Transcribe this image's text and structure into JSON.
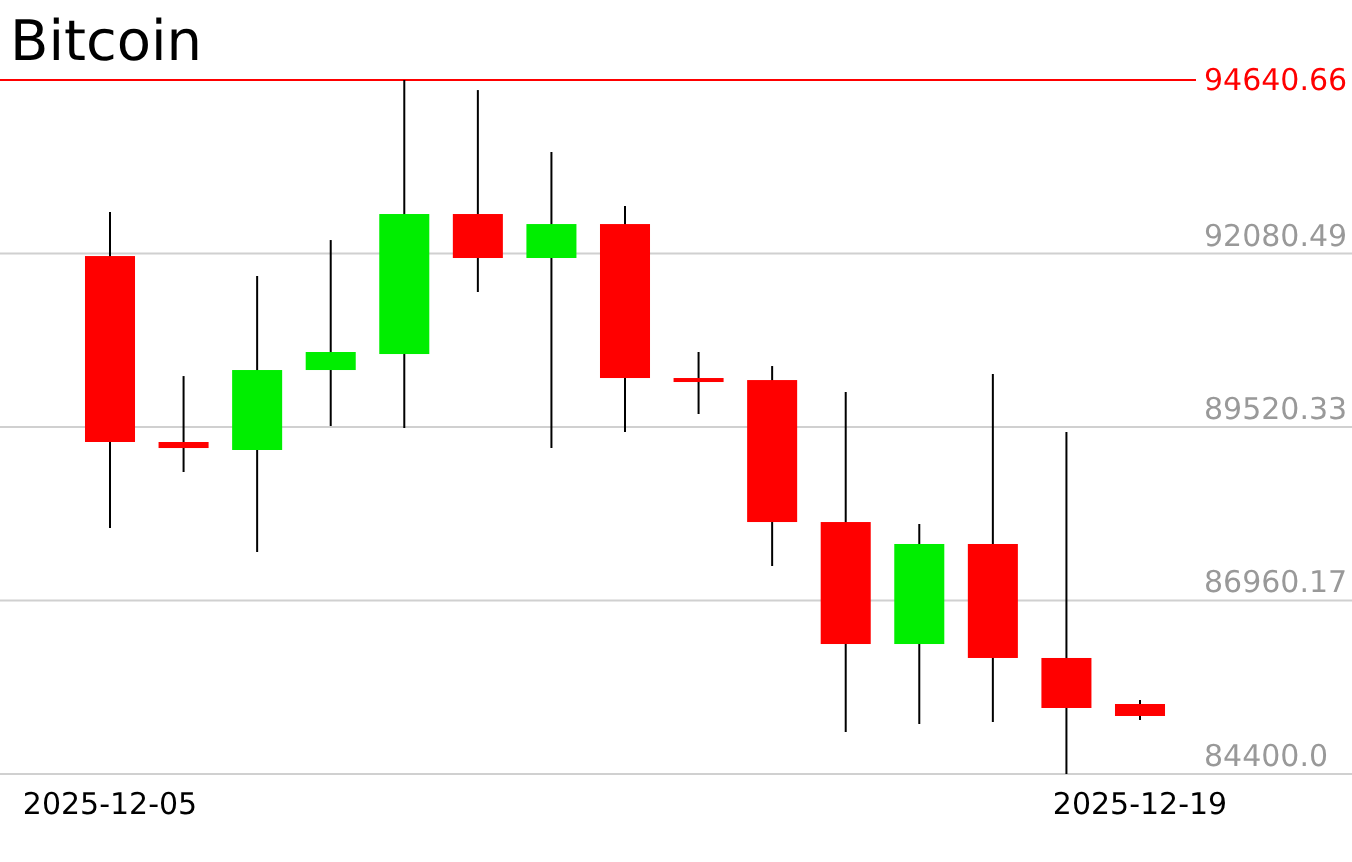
{
  "chart_data": {
    "type": "candlestick",
    "title": "Bitcoin",
    "categories": [
      "2025-12-05",
      null,
      null,
      null,
      null,
      null,
      null,
      null,
      null,
      null,
      null,
      null,
      null,
      null,
      "2025-12-19"
    ],
    "ohlc": [
      [
        92043,
        92692,
        88030,
        89299
      ],
      [
        89299,
        90272,
        88856,
        89210
      ],
      [
        89181,
        91748,
        87676,
        90361
      ],
      [
        90361,
        92279,
        89535,
        90627
      ],
      [
        90597,
        94640.66,
        89505,
        92663
      ],
      [
        92663,
        94492,
        91512,
        92014
      ],
      [
        92014,
        93578,
        89210,
        92515
      ],
      [
        92515,
        92781,
        89446,
        90243
      ],
      [
        90243,
        90627,
        89712,
        90184
      ],
      [
        90213,
        90420,
        87469,
        88118
      ],
      [
        88118,
        90036,
        85020,
        86318
      ],
      [
        86318,
        88089,
        85138,
        87794
      ],
      [
        87794,
        90302,
        85167,
        86112
      ],
      [
        86112,
        89446,
        84400,
        85374
      ],
      [
        85433,
        85492,
        85197,
        85256
      ]
    ],
    "colors": [
      "#ff0000",
      "#ff0000",
      "#00ee00",
      "#00ee00",
      "#00ee00",
      "#ff0000",
      "#00ee00",
      "#ff0000",
      "#ff0000",
      "#ff0000",
      "#ff0000",
      "#00ee00",
      "#ff0000",
      "#ff0000",
      "#ff0000"
    ],
    "ylim": [
      84400,
      94640.66
    ],
    "yticks": [
      {
        "value": 84400,
        "label": "84400.0"
      },
      86960.17,
      89520.33,
      92080.49
    ],
    "grid": "y",
    "ref_lines": [
      {
        "axis": "y",
        "value": 94640.66,
        "label": "94640.66",
        "color": "#ff0000"
      }
    ]
  }
}
